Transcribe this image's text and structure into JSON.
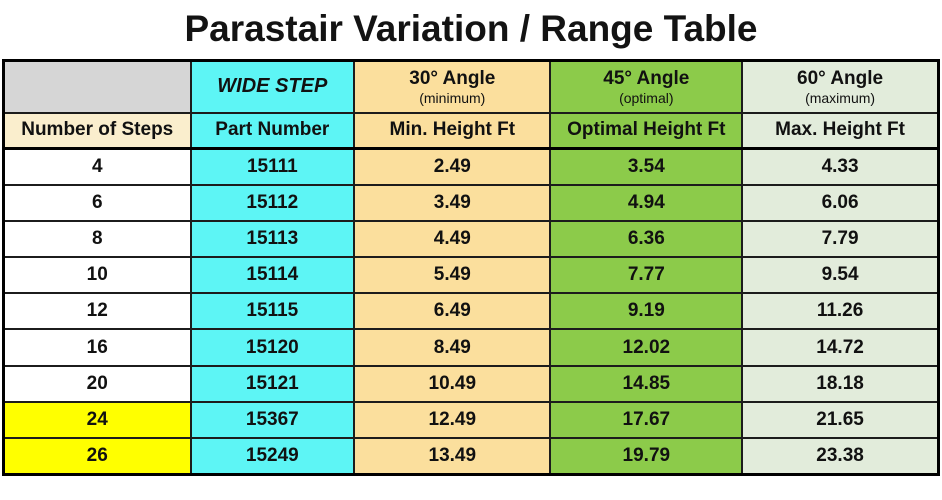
{
  "title": "Parastair Variation / Range Table",
  "table": {
    "header_row1": {
      "corner": "",
      "wide_step": "WIDE STEP",
      "angle30": {
        "title": "30° Angle",
        "subtitle": "(minimum)"
      },
      "angle45": {
        "title": "45° Angle",
        "subtitle": "(optimal)"
      },
      "angle60": {
        "title": "60° Angle",
        "subtitle": "(maximum)"
      }
    },
    "header_row2": {
      "steps": "Number of Steps",
      "part": "Part Number",
      "min": "Min. Height Ft",
      "optimal": "Optimal Height Ft",
      "max": "Max. Height Ft"
    },
    "rows": [
      {
        "steps": "4",
        "part": "15111",
        "min": "2.49",
        "optimal": "3.54",
        "max": "4.33",
        "highlight": false
      },
      {
        "steps": "6",
        "part": "15112",
        "min": "3.49",
        "optimal": "4.94",
        "max": "6.06",
        "highlight": false
      },
      {
        "steps": "8",
        "part": "15113",
        "min": "4.49",
        "optimal": "6.36",
        "max": "7.79",
        "highlight": false
      },
      {
        "steps": "10",
        "part": "15114",
        "min": "5.49",
        "optimal": "7.77",
        "max": "9.54",
        "highlight": false
      },
      {
        "steps": "12",
        "part": "15115",
        "min": "6.49",
        "optimal": "9.19",
        "max": "11.26",
        "highlight": false
      },
      {
        "steps": "16",
        "part": "15120",
        "min": "8.49",
        "optimal": "12.02",
        "max": "14.72",
        "highlight": false
      },
      {
        "steps": "20",
        "part": "15121",
        "min": "10.49",
        "optimal": "14.85",
        "max": "18.18",
        "highlight": false
      },
      {
        "steps": "24",
        "part": "15367",
        "min": "12.49",
        "optimal": "17.67",
        "max": "21.65",
        "highlight": true
      },
      {
        "steps": "26",
        "part": "15249",
        "min": "13.49",
        "optimal": "19.79",
        "max": "23.38",
        "highlight": true
      }
    ]
  },
  "colors": {
    "cyan": "#5df5f5",
    "tan": "#fbdf9d",
    "cream": "#faeecd",
    "green": "#8ccb4a",
    "pale_green": "#e2ecdb",
    "gray": "#d6d6d6",
    "yellow": "#ffff00",
    "border": "#1c1c1c",
    "title_text": "#131313"
  },
  "chart_data": {
    "type": "table",
    "title": "Parastair Variation / Range Table",
    "columns": [
      "Number of Steps",
      "Part Number (WIDE STEP)",
      "Min. Height Ft (30° Angle, minimum)",
      "Optimal Height Ft (45° Angle, optimal)",
      "Max. Height Ft (60° Angle, maximum)"
    ],
    "rows": [
      [
        4,
        "15111",
        2.49,
        3.54,
        4.33
      ],
      [
        6,
        "15112",
        3.49,
        4.94,
        6.06
      ],
      [
        8,
        "15113",
        4.49,
        6.36,
        7.79
      ],
      [
        10,
        "15114",
        5.49,
        7.77,
        9.54
      ],
      [
        12,
        "15115",
        6.49,
        9.19,
        11.26
      ],
      [
        16,
        "15120",
        8.49,
        12.02,
        14.72
      ],
      [
        20,
        "15121",
        10.49,
        14.85,
        18.18
      ],
      [
        24,
        "15367",
        12.49,
        17.67,
        21.65
      ],
      [
        26,
        "15249",
        13.49,
        19.79,
        23.38
      ]
    ],
    "highlighted_step_rows": [
      24,
      26
    ]
  }
}
